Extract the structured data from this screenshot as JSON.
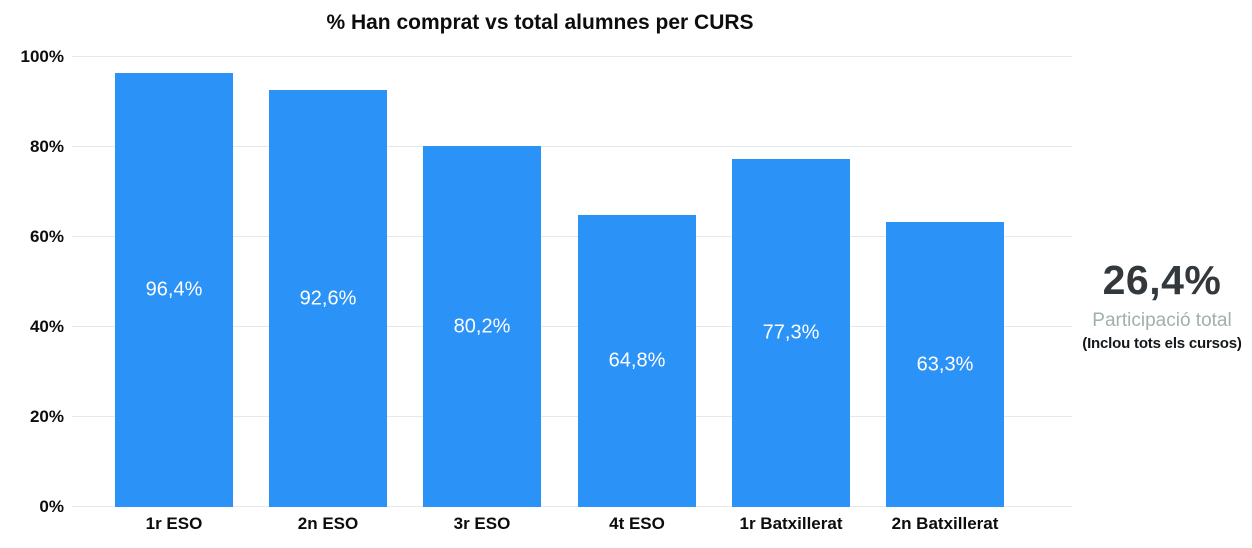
{
  "chart_data": {
    "type": "bar",
    "title": "% Han comprat vs total alumnes per CURS",
    "categories": [
      "1r ESO",
      "2n ESO",
      "3r ESO",
      "4t ESO",
      "1r Batxillerat",
      "2n Batxillerat"
    ],
    "values": [
      96.4,
      92.6,
      80.2,
      64.8,
      77.3,
      63.3
    ],
    "value_labels": [
      "96,4%",
      "92,6%",
      "80,2%",
      "64,8%",
      "77,3%",
      "63,3%"
    ],
    "ytick_labels": [
      "0%",
      "20%",
      "40%",
      "60%",
      "80%",
      "100%"
    ],
    "ylim": [
      0,
      100
    ],
    "xlabel": "",
    "ylabel": "",
    "grid": "horizontal-only",
    "legend": "none",
    "bar_color": "#2b92f8",
    "value_label_color": "#ffffff",
    "gridline_color": "#e4eaea"
  },
  "annotation": {
    "value": "26,4%",
    "label": "Participació total",
    "note": "(Inclou tots els cursos)",
    "value_color": "#33383c",
    "label_color": "#a0b0ad",
    "note_color": "#15181b"
  },
  "colors": {
    "background": "#ffffff",
    "axis_text": "#0c0d0e"
  }
}
